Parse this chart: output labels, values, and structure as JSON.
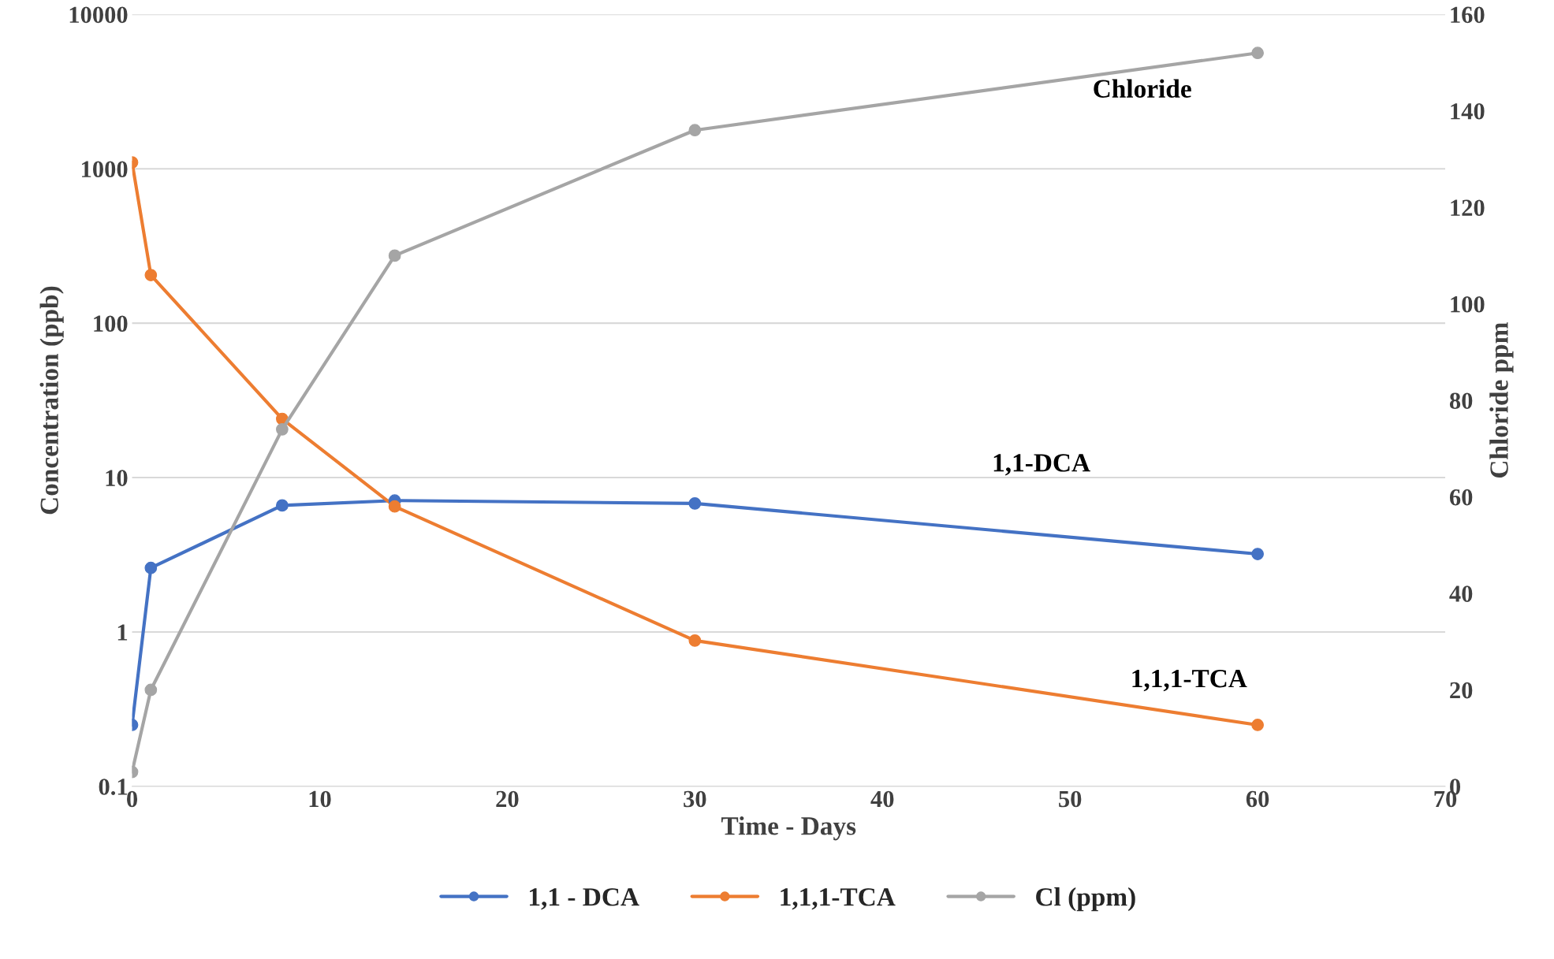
{
  "chart_data": {
    "type": "line",
    "xlabel": "Time - Days",
    "ylabel": "Concentration (ppb)",
    "y2label": "Chloride ppm",
    "x": [
      0,
      1,
      8,
      14,
      30,
      60
    ],
    "series": [
      {
        "name": "1,1 - DCA",
        "color": "#4472c4",
        "values": [
          0.25,
          2.6,
          6.6,
          7.1,
          6.8,
          3.2
        ]
      },
      {
        "name": "1,1,1-TCA",
        "color": "#ed7d31",
        "values": [
          1100,
          205,
          24,
          6.5,
          0.88,
          0.25
        ]
      },
      {
        "name": "Cl (ppm)",
        "color": "#a5a5a5",
        "axis": "y2",
        "values": [
          3,
          20,
          74,
          110,
          136,
          152
        ]
      }
    ],
    "xlim": [
      0,
      70
    ],
    "xticks": [
      0,
      10,
      20,
      30,
      40,
      50,
      60,
      70
    ],
    "ylim": [
      0.1,
      10000
    ],
    "yticks": [
      0.1,
      1,
      10,
      100,
      1000,
      10000
    ],
    "y2lim": [
      0,
      160
    ],
    "y2ticks": [
      0,
      20,
      40,
      60,
      80,
      100,
      120,
      140,
      160
    ],
    "log": "y",
    "grid": "y",
    "legend": "bottom",
    "marker": "circle",
    "line_style": "solid",
    "annotations": [
      "Chloride",
      "1,1-DCA",
      "1,1,1-TCA"
    ]
  }
}
